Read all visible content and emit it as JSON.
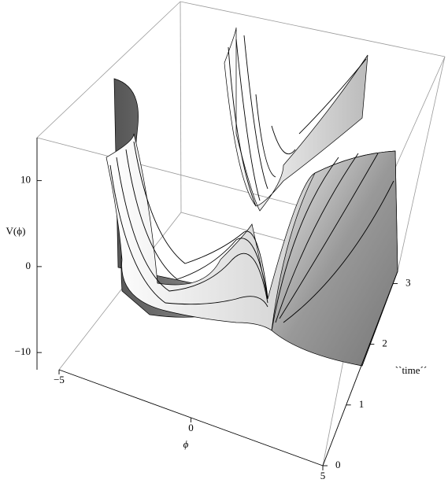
{
  "chart_data": {
    "type": "surface3d",
    "xlabel": "ϕ",
    "ylabel": "``time´´",
    "zlabel": "V(ϕ)",
    "xlim": [
      -5,
      5
    ],
    "xticks": [
      {
        "value": -5,
        "label": "−5"
      },
      0,
      5
    ],
    "ylim": [
      0,
      3.2
    ],
    "yticks": [
      0,
      1,
      2,
      3
    ],
    "zlim": [
      -12,
      15
    ],
    "zticks": [
      {
        "value": -10,
        "label": "−10"
      },
      0,
      10
    ]
  }
}
